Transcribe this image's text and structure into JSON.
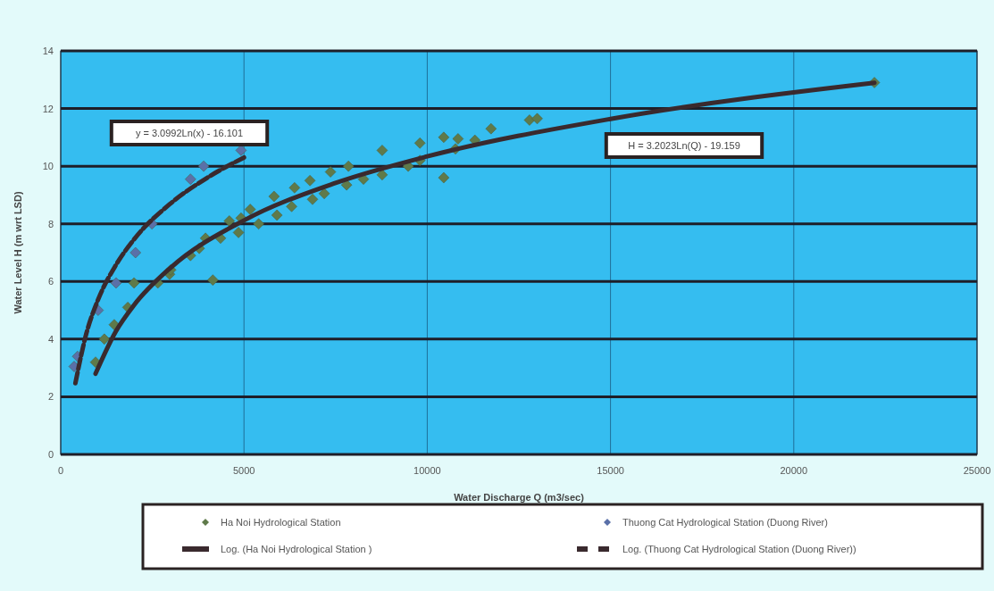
{
  "chart_data": {
    "type": "scatter",
    "xlabel": "Water Discharge Q  (m3/sec)",
    "ylabel": "Water Level H (m wrt LSD)",
    "xlim": [
      0,
      25000
    ],
    "xticks": [
      0,
      5000,
      10000,
      15000,
      20000,
      25000
    ],
    "ylim": [
      0,
      14
    ],
    "yticks": [
      0,
      2,
      4,
      6,
      8,
      10,
      12,
      14
    ],
    "grid": true,
    "legend": "bottom",
    "marker": "diamond",
    "annotations": [
      "y = 3.0992Ln(x) - 16.101",
      "H = 3.2023Ln(Q) - 19.159"
    ],
    "series": [
      {
        "name": "Ha Noi Hydrological Station",
        "color": "#5f7a4a",
        "x": [
          950,
          1190,
          1460,
          1830,
          2000,
          2650,
          2970,
          3000,
          3540,
          3780,
          3950,
          4150,
          4360,
          4600,
          4850,
          4920,
          5170,
          5400,
          5820,
          5900,
          6300,
          6380,
          6800,
          6870,
          7190,
          7360,
          7850,
          7800,
          8260,
          8770,
          8770,
          9480,
          9800,
          9800,
          10450,
          10450,
          10840,
          10770,
          11300,
          11740,
          12790,
          13000,
          22200
        ],
        "values": [
          3.2,
          4.0,
          4.5,
          5.1,
          5.95,
          5.95,
          6.25,
          6.4,
          6.9,
          7.15,
          7.5,
          6.05,
          7.5,
          8.1,
          7.7,
          8.2,
          8.5,
          8.0,
          8.95,
          8.3,
          8.6,
          9.25,
          9.5,
          8.85,
          9.05,
          9.8,
          10.0,
          9.35,
          9.55,
          10.55,
          9.7,
          10.0,
          10.8,
          10.2,
          11.0,
          9.6,
          10.95,
          10.6,
          10.9,
          11.3,
          11.6,
          11.65,
          12.9
        ]
      },
      {
        "name": "Thuong Cat Hydrological Station (Duong River)",
        "color": "#5a70a8",
        "x": [
          365,
          460,
          1020,
          1510,
          2040,
          2490,
          3540,
          3900,
          4920
        ],
        "values": [
          3.05,
          3.4,
          5.0,
          5.95,
          7.0,
          8.0,
          9.55,
          10.0,
          10.55
        ]
      },
      {
        "name": "Log. (Ha Noi Hydrological Station )",
        "type": "line",
        "color": "#3a2a2e",
        "line_style": "solid",
        "marker": "none",
        "x": [
          950,
          1500,
          2000,
          3000,
          5000,
          7500,
          10000,
          15000,
          22200
        ],
        "values": [
          2.8,
          4.26,
          5.18,
          6.48,
          8.12,
          9.42,
          10.34,
          11.64,
          12.89
        ]
      },
      {
        "name": "Log. (Thuong Cat Hydrological Station (Duong River))",
        "type": "line",
        "color": "#3a2a2e",
        "line_style": "dashed",
        "marker": "none",
        "x": [
          400,
          700,
          1000,
          1500,
          2000,
          3000,
          4000,
          5000
        ],
        "values": [
          2.47,
          4.2,
          5.31,
          6.56,
          7.46,
          8.71,
          9.6,
          10.3
        ]
      }
    ]
  }
}
